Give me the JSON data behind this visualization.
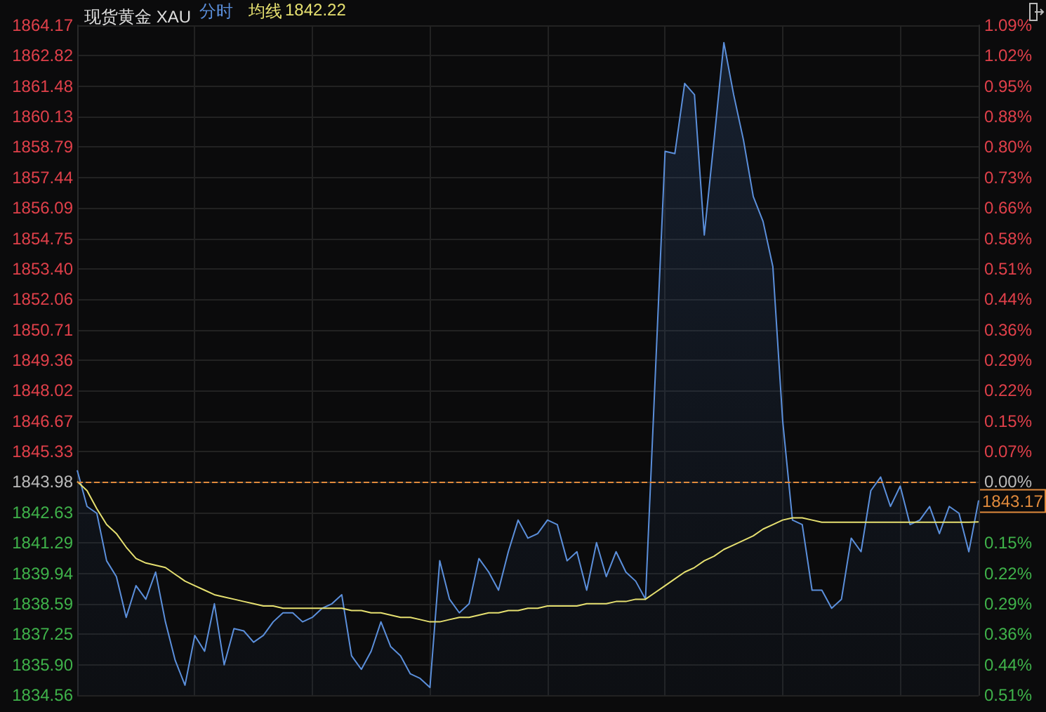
{
  "chart_data": {
    "type": "line",
    "title": "现货黄金 XAU",
    "categories": [
      null,
      null,
      null,
      null,
      null,
      null,
      null,
      null,
      null,
      null,
      null,
      null,
      null,
      null,
      null,
      null,
      null,
      null,
      null,
      null,
      null,
      null,
      null,
      null,
      null,
      null,
      null,
      null,
      null,
      null,
      null,
      null,
      null,
      null,
      null,
      null,
      null,
      null,
      null,
      null,
      null,
      null,
      null,
      null,
      null,
      null,
      null,
      null,
      null,
      null,
      null,
      null,
      null,
      null,
      null,
      null,
      null,
      null,
      null,
      null,
      null,
      null,
      null,
      null,
      null,
      null,
      null,
      null,
      null,
      null,
      null,
      null,
      null,
      null,
      null,
      null,
      null,
      null,
      null,
      null,
      null,
      null,
      null,
      null,
      null,
      null,
      null,
      null,
      null,
      null,
      null,
      null,
      null
    ],
    "series": [
      {
        "name": "分时",
        "type": "area",
        "color": "#5b8fdb",
        "values": [
          1844.5,
          1842.9,
          1842.6,
          1840.5,
          1839.8,
          1838.0,
          1839.4,
          1838.8,
          1840.0,
          1837.8,
          1836.1,
          1835.0,
          1837.2,
          1836.5,
          1838.6,
          1835.9,
          1837.5,
          1837.4,
          1836.9,
          1837.2,
          1837.8,
          1838.2,
          1838.2,
          1837.8,
          1838.0,
          1838.4,
          1838.6,
          1839.0,
          1836.3,
          1835.7,
          1836.5,
          1837.8,
          1836.7,
          1836.3,
          1835.5,
          1835.3,
          1834.9,
          1840.5,
          1838.8,
          1838.2,
          1838.6,
          1840.6,
          1840.0,
          1839.2,
          1840.9,
          1842.3,
          1841.5,
          1841.7,
          1842.3,
          1842.1,
          1840.5,
          1840.9,
          1839.2,
          1841.3,
          1839.8,
          1840.9,
          1840.0,
          1839.6,
          1838.8,
          1848.7,
          1858.6,
          1858.5,
          1861.6,
          1861.1,
          1854.9,
          1859.1,
          1863.4,
          1861.1,
          1859.1,
          1856.6,
          1855.5,
          1853.5,
          1846.7,
          1842.3,
          1842.1,
          1839.2,
          1839.2,
          1838.4,
          1838.8,
          1841.5,
          1840.9,
          1843.6,
          1844.2,
          1842.9,
          1843.8,
          1842.1,
          1842.3,
          1842.9,
          1841.7,
          1842.9,
          1842.6,
          1840.9,
          1843.17
        ]
      },
      {
        "name": "均线",
        "color": "#e6e070",
        "values": [
          1844.0,
          1843.6,
          1842.8,
          1842.1,
          1841.7,
          1841.1,
          1840.6,
          1840.4,
          1840.3,
          1840.2,
          1839.9,
          1839.6,
          1839.4,
          1839.2,
          1839.0,
          1838.9,
          1838.8,
          1838.7,
          1838.6,
          1838.5,
          1838.5,
          1838.4,
          1838.4,
          1838.4,
          1838.4,
          1838.4,
          1838.4,
          1838.4,
          1838.3,
          1838.3,
          1838.2,
          1838.2,
          1838.1,
          1838.0,
          1838.0,
          1837.9,
          1837.8,
          1837.8,
          1837.9,
          1838.0,
          1838.0,
          1838.1,
          1838.2,
          1838.2,
          1838.3,
          1838.3,
          1838.4,
          1838.4,
          1838.5,
          1838.5,
          1838.5,
          1838.5,
          1838.6,
          1838.6,
          1838.6,
          1838.7,
          1838.7,
          1838.8,
          1838.8,
          1839.1,
          1839.4,
          1839.7,
          1840.0,
          1840.2,
          1840.5,
          1840.7,
          1841.0,
          1841.2,
          1841.4,
          1841.6,
          1841.9,
          1842.1,
          1842.3,
          1842.4,
          1842.4,
          1842.3,
          1842.2,
          1842.2,
          1842.2,
          1842.2,
          1842.2,
          1842.2,
          1842.2,
          1842.2,
          1842.2,
          1842.2,
          1842.2,
          1842.2,
          1842.2,
          1842.2,
          1842.2,
          1842.2,
          1842.22
        ]
      }
    ],
    "ylim": [
      1834.56,
      1864.17
    ],
    "yticks": [
      1834.56,
      {
        "value": 1835.9,
        "label": "1835.90"
      },
      1837.25,
      1838.59,
      1839.94,
      1841.29,
      1842.63,
      1843.98,
      1845.33,
      1846.67,
      1848.02,
      1849.36,
      1850.71,
      1852.06,
      {
        "value": 1853.4,
        "label": "1853.40"
      },
      1854.75,
      1856.09,
      1857.44,
      1858.79,
      1860.13,
      1861.48,
      1862.82,
      1864.17
    ],
    "y2lim": [
      -0.511,
      1.095
    ],
    "y2ticks": [
      {
        "value": -0.511,
        "label": "0.51%"
      },
      {
        "value": -0.438,
        "label": "0.44%"
      },
      {
        "value": -0.365,
        "label": "0.36%"
      },
      {
        "value": -0.292,
        "label": "0.29%"
      },
      {
        "value": -0.219,
        "label": "0.22%"
      },
      {
        "value": -0.146,
        "label": "0.15%"
      },
      {
        "value": 0,
        "label": "0.00%"
      },
      {
        "value": 0.073,
        "label": "0.07%"
      },
      {
        "value": 0.146,
        "label": "0.15%"
      },
      {
        "value": 0.219,
        "label": "0.22%"
      },
      {
        "value": 0.292,
        "label": "0.29%"
      },
      {
        "value": 0.365,
        "label": "0.36%"
      },
      {
        "value": 0.438,
        "label": "0.44%"
      },
      {
        "value": 0.511,
        "label": "0.51%"
      },
      {
        "value": 0.584,
        "label": "0.58%"
      },
      {
        "value": 0.657,
        "label": "0.66%"
      },
      {
        "value": 0.73,
        "label": "0.73%"
      },
      {
        "value": 0.803,
        "label": "0.80%"
      },
      {
        "value": 0.876,
        "label": "0.88%"
      },
      {
        "value": 0.949,
        "label": "0.95%"
      },
      {
        "value": 1.022,
        "label": "1.02%"
      },
      {
        "value": 1.095,
        "label": "1.09%"
      }
    ],
    "ref_lines": [
      {
        "axis": "y",
        "value": 1843.98,
        "color": "#e08a3c",
        "line_style": "dashed"
      }
    ],
    "annotations": [
      "1842.22",
      "1843.17"
    ],
    "legend": "top left",
    "grid": true,
    "marker": "none",
    "line_style": "solid",
    "tick_labels": "y"
  }
}
